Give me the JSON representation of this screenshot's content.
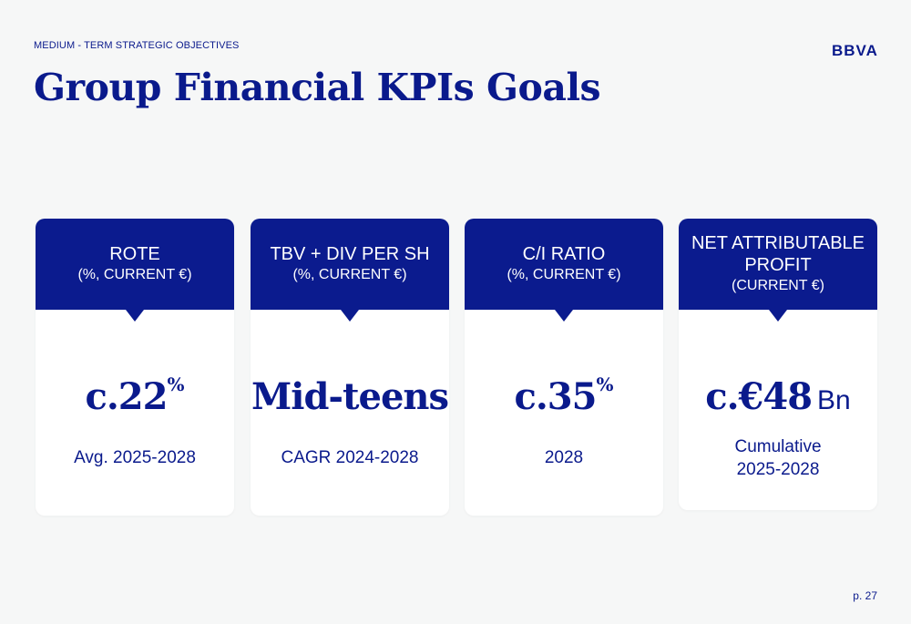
{
  "header": {
    "eyebrow": "MEDIUM - TERM STRATEGIC OBJECTIVES",
    "logo": "BBVA",
    "title": "Group Financial KPIs Goals"
  },
  "cards": [
    {
      "title": "ROTE",
      "title2": "",
      "subtitle": "(%, CURRENT €)",
      "value": "c.22",
      "suffix": "%",
      "unit": "",
      "note1": "Avg. 2025-2028",
      "note2": ""
    },
    {
      "title": "TBV + DIV PER SH",
      "title2": "",
      "subtitle": "(%, CURRENT €)",
      "value": "Mid-teens",
      "suffix": "",
      "unit": "",
      "note1": "CAGR 2024-2028",
      "note2": ""
    },
    {
      "title": "C/I RATIO",
      "title2": "",
      "subtitle": "(%, CURRENT €)",
      "value": "c.35",
      "suffix": "%",
      "unit": "",
      "note1": "2028",
      "note2": ""
    },
    {
      "title": "NET ATTRIBUTABLE",
      "title2": "PROFIT",
      "subtitle": "(CURRENT €)",
      "value": "c.€48",
      "suffix": "",
      "unit": "Bn",
      "note1": "Cumulative",
      "note2": "2025-2028"
    }
  ],
  "footer": {
    "page": "p. 27"
  },
  "colors": {
    "brand": "#0b1b8e",
    "background": "#f6f7f7",
    "card": "#ffffff"
  }
}
